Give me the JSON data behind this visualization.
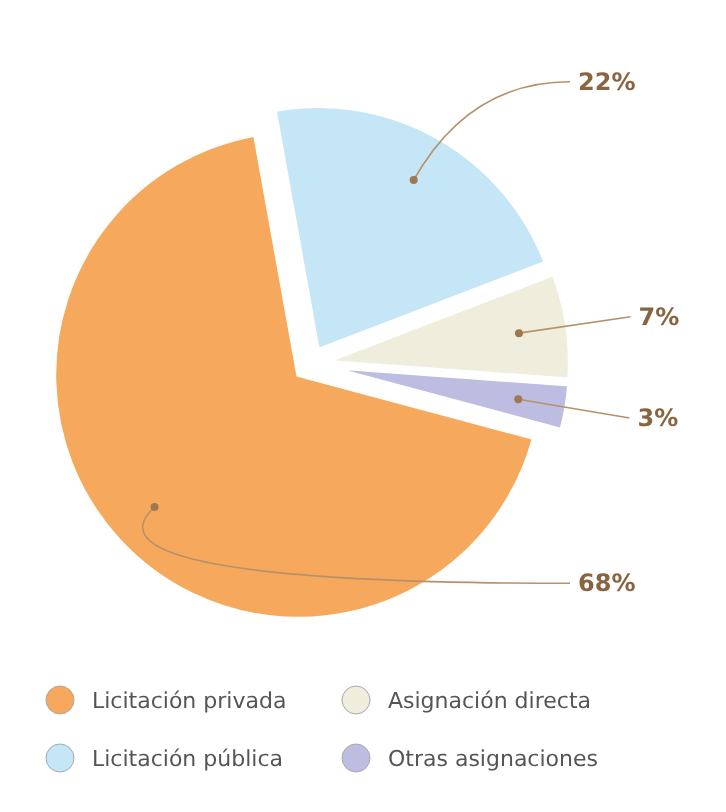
{
  "chart_data": {
    "type": "pie",
    "categories": [
      "Licitación privada",
      "Licitación pública",
      "Asignación directa",
      "Otras asignaciones"
    ],
    "values": [
      68,
      22,
      7,
      3
    ],
    "colors": [
      "#f6a95c",
      "#c4e6f6",
      "#efeedc",
      "#bcbde0"
    ],
    "value_labels": [
      "68%",
      "22%",
      "7%",
      "3%"
    ],
    "legend": "bottom"
  }
}
